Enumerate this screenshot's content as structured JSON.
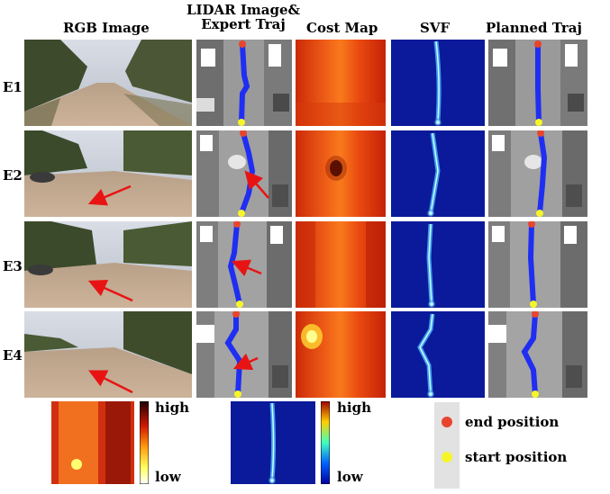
{
  "columns": {
    "rgb": "RGB Image",
    "lidar_line1": "LIDAR Image&",
    "lidar_line2": "Expert Traj",
    "cost": "Cost Map",
    "svf": "SVF",
    "planned": "Planned Traj"
  },
  "rows": [
    "E1",
    "E2",
    "E3",
    "E4"
  ],
  "colorbars": {
    "cost_high": "high",
    "cost_low": "low",
    "svf_high": "high",
    "svf_low": "low"
  },
  "legend": {
    "end_label": "end position",
    "start_label": "start position",
    "end_color": "#e8452f",
    "start_color": "#f5f52a"
  },
  "colors": {
    "trajectory": "#1f2ef2",
    "arrow": "#e81414",
    "svf_bg": "#0a1a9a"
  }
}
